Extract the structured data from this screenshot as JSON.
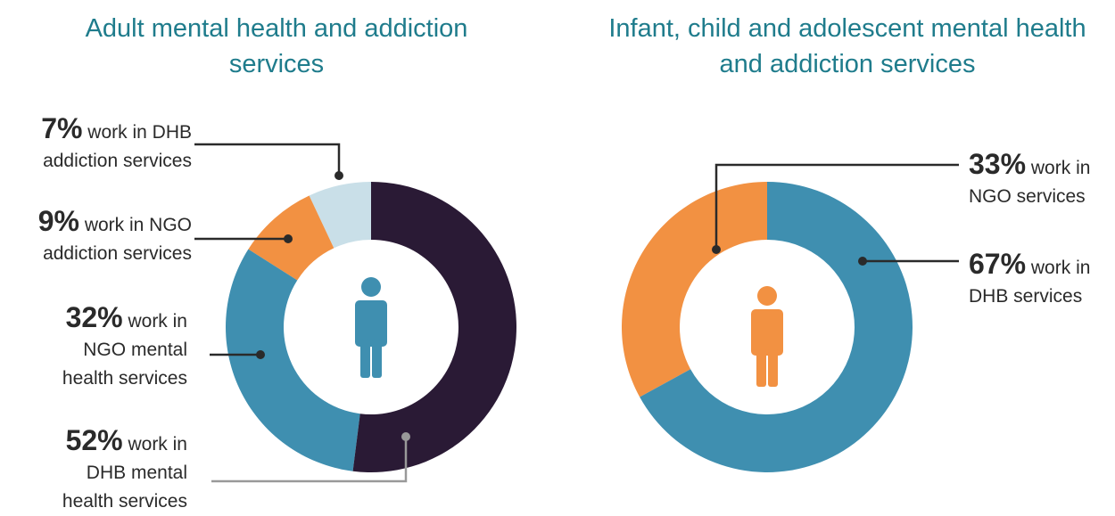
{
  "chart_data": [
    {
      "type": "donut",
      "title": "Adult mental health and addiction services",
      "categories": [
        "work in DHB mental health services",
        "work in NGO mental health services",
        "work in NGO addiction services",
        "work in DHB addiction services"
      ],
      "values": [
        52,
        32,
        9,
        7
      ],
      "value_labels": [
        "52%",
        "32%",
        "9%",
        "7%"
      ],
      "colors": [
        "#2a1a35",
        "#3f8fb0",
        "#f29142",
        "#c9dfe8"
      ]
    },
    {
      "type": "donut",
      "title": "Infant, child and adolescent mental health and addiction services",
      "categories": [
        "work in DHB services",
        "work in NGO services"
      ],
      "values": [
        67,
        33
      ],
      "value_labels": [
        "67%",
        "33%"
      ],
      "colors": [
        "#3f8fb0",
        "#f29142"
      ]
    }
  ]
}
